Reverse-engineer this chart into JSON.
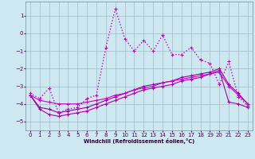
{
  "xlabel": "Windchill (Refroidissement éolien,°C)",
  "background_color": "#cde8f0",
  "grid_color": "#a0bcc8",
  "x_ticks": [
    0,
    1,
    2,
    3,
    4,
    5,
    6,
    7,
    8,
    9,
    10,
    11,
    12,
    13,
    14,
    15,
    16,
    17,
    18,
    19,
    20,
    21,
    22,
    23
  ],
  "ylim": [
    -5.5,
    1.8
  ],
  "xlim": [
    -0.5,
    23.5
  ],
  "line1": {
    "x": [
      0,
      1,
      2,
      3,
      4,
      5,
      6,
      7,
      8,
      9,
      10,
      11,
      12,
      13,
      14,
      15,
      16,
      17,
      18,
      19,
      20,
      21,
      22,
      23
    ],
    "y": [
      -3.4,
      -3.7,
      -3.1,
      -4.5,
      -4.3,
      -4.2,
      -3.7,
      -3.5,
      -0.8,
      1.4,
      -0.3,
      -1.0,
      -0.4,
      -1.0,
      -0.1,
      -1.2,
      -1.2,
      -0.8,
      -1.5,
      -1.7,
      -2.9,
      -1.6,
      -3.6,
      -4.1
    ],
    "color": "#cc00cc",
    "linestyle": "dotted",
    "lw": 1.0,
    "marker": "+"
  },
  "line2": {
    "x": [
      0,
      1,
      2,
      3,
      4,
      5,
      6,
      7,
      8,
      9,
      10,
      11,
      12,
      13,
      14,
      15,
      16,
      17,
      18,
      19,
      20,
      21,
      22,
      23
    ],
    "y": [
      -3.5,
      -3.8,
      -3.9,
      -4.0,
      -4.0,
      -4.0,
      -3.9,
      -3.8,
      -3.7,
      -3.5,
      -3.4,
      -3.2,
      -3.1,
      -3.0,
      -2.8,
      -2.7,
      -2.6,
      -2.5,
      -2.4,
      -2.3,
      -2.2,
      -3.0,
      -3.5,
      -4.0
    ],
    "color": "#cc00cc",
    "linestyle": "solid",
    "lw": 0.8,
    "marker": "+"
  },
  "line3": {
    "x": [
      0,
      1,
      2,
      3,
      4,
      5,
      6,
      7,
      8,
      9,
      10,
      11,
      12,
      13,
      14,
      15,
      16,
      17,
      18,
      19,
      20,
      21,
      22,
      23
    ],
    "y": [
      -3.5,
      -4.2,
      -4.3,
      -4.5,
      -4.4,
      -4.3,
      -4.2,
      -4.0,
      -3.8,
      -3.6,
      -3.4,
      -3.2,
      -3.0,
      -2.9,
      -2.8,
      -2.7,
      -2.5,
      -2.4,
      -2.3,
      -2.2,
      -2.0,
      -2.9,
      -3.4,
      -4.0
    ],
    "color": "#990099",
    "linestyle": "solid",
    "lw": 0.8,
    "marker": "+"
  },
  "line4": {
    "x": [
      0,
      1,
      2,
      3,
      4,
      5,
      6,
      7,
      8,
      9,
      10,
      11,
      12,
      13,
      14,
      15,
      16,
      17,
      18,
      19,
      20,
      21,
      22,
      23
    ],
    "y": [
      -3.5,
      -4.3,
      -4.6,
      -4.7,
      -4.6,
      -4.5,
      -4.4,
      -4.2,
      -4.0,
      -3.8,
      -3.6,
      -3.4,
      -3.2,
      -3.1,
      -3.0,
      -2.9,
      -2.7,
      -2.6,
      -2.5,
      -2.3,
      -2.1,
      -3.9,
      -4.0,
      -4.2
    ],
    "color": "#aa00aa",
    "linestyle": "solid",
    "lw": 0.8,
    "marker": "+"
  }
}
